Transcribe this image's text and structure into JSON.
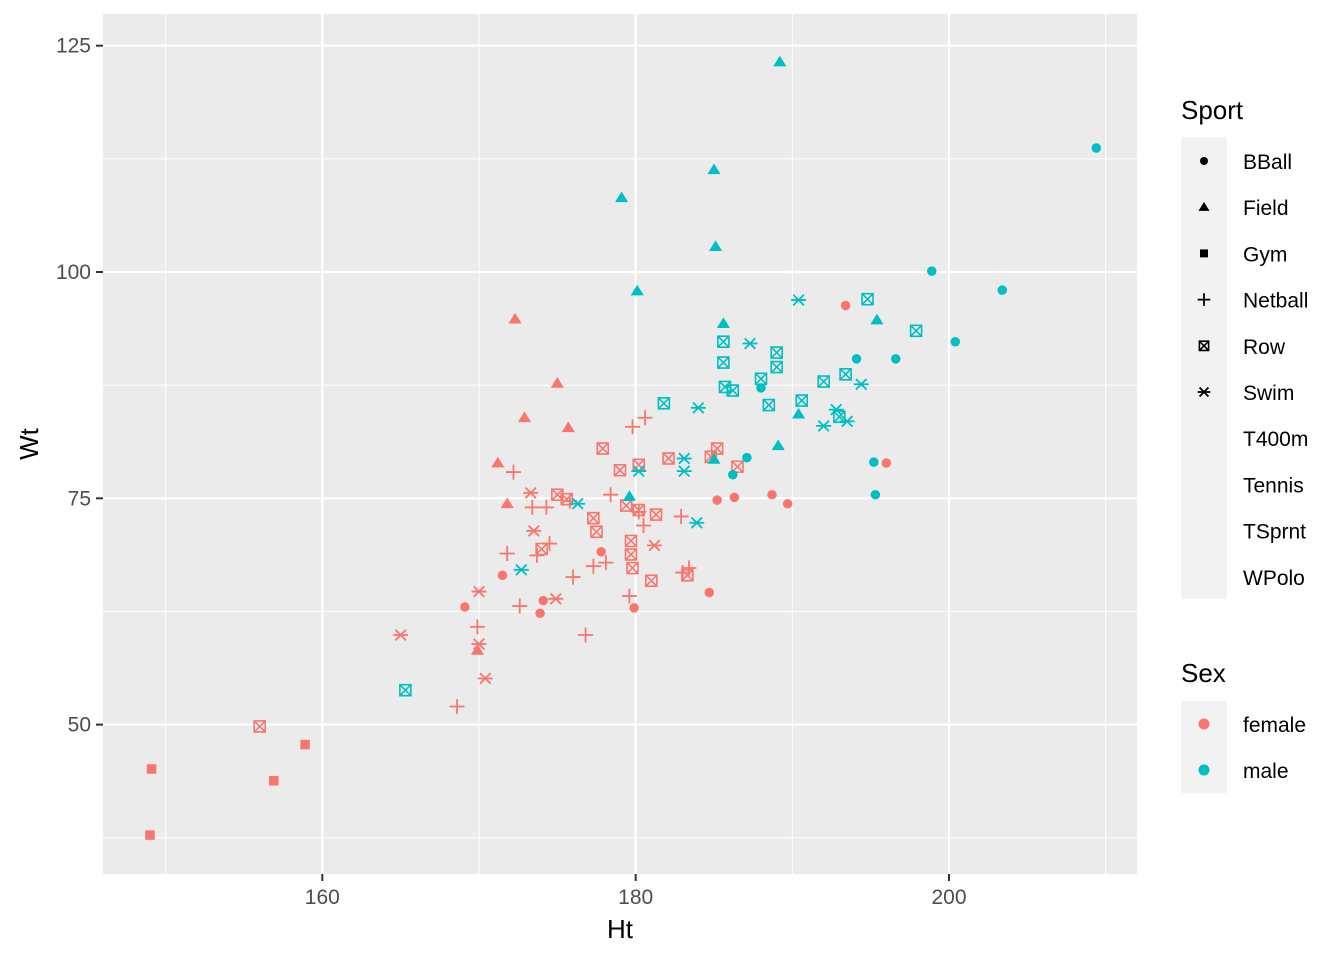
{
  "chart_data": {
    "type": "scatter",
    "xlabel": "Ht",
    "ylabel": "Wt",
    "xlim": [
      146,
      212
    ],
    "ylim": [
      33.5,
      128.5
    ],
    "x_ticks": [
      160,
      180,
      200
    ],
    "y_ticks": [
      50,
      75,
      100,
      125
    ],
    "x_tick_labels": [
      "160",
      "180",
      "200"
    ],
    "y_tick_labels": [
      "50",
      "75",
      "100",
      "125"
    ],
    "grid": true,
    "legend_position": "right",
    "colors": {
      "female": "#F8766D",
      "male": "#00BFC4",
      "panel": "#EBEBEB",
      "grid": "#FFFFFF",
      "legend_key": "#F2F2F2"
    },
    "legend_sport": {
      "title": "Sport",
      "items": [
        {
          "label": "BBall",
          "shape": "circle"
        },
        {
          "label": "Field",
          "shape": "triangle"
        },
        {
          "label": "Gym",
          "shape": "square"
        },
        {
          "label": "Netball",
          "shape": "plus"
        },
        {
          "label": "Row",
          "shape": "boxcross"
        },
        {
          "label": "Swim",
          "shape": "asterisk"
        },
        {
          "label": "T400m",
          "shape": "none"
        },
        {
          "label": "Tennis",
          "shape": "none"
        },
        {
          "label": "TSprnt",
          "shape": "none"
        },
        {
          "label": "WPolo",
          "shape": "none"
        }
      ]
    },
    "legend_sex": {
      "title": "Sex",
      "items": [
        {
          "label": "female",
          "color": "#F8766D"
        },
        {
          "label": "male",
          "color": "#00BFC4"
        }
      ]
    },
    "series": [
      {
        "sex": "female",
        "sport": "BBall",
        "points": [
          [
            169.1,
            63.0
          ],
          [
            171.5,
            66.5
          ],
          [
            173.9,
            62.3
          ],
          [
            174.1,
            63.7
          ],
          [
            177.8,
            69.1
          ],
          [
            179.9,
            62.9
          ],
          [
            184.7,
            64.6
          ],
          [
            185.2,
            74.8
          ],
          [
            186.3,
            75.1
          ],
          [
            188.7,
            75.4
          ],
          [
            189.7,
            74.4
          ],
          [
            193.4,
            96.3
          ],
          [
            196.0,
            78.9
          ]
        ]
      },
      {
        "sex": "female",
        "sport": "Field",
        "points": [
          [
            169.9,
            58.2
          ],
          [
            171.2,
            78.9
          ],
          [
            171.8,
            74.4
          ],
          [
            172.3,
            94.8
          ],
          [
            172.9,
            83.9
          ],
          [
            175.0,
            87.7
          ],
          [
            175.7,
            82.8
          ]
        ]
      },
      {
        "sex": "female",
        "sport": "Gym",
        "points": [
          [
            149.0,
            37.8
          ],
          [
            149.1,
            45.1
          ],
          [
            156.9,
            43.8
          ],
          [
            158.9,
            47.8
          ]
        ]
      },
      {
        "sex": "female",
        "sport": "Netball",
        "points": [
          [
            168.6,
            52.0
          ],
          [
            169.9,
            60.8
          ],
          [
            171.8,
            68.9
          ],
          [
            172.2,
            77.9
          ],
          [
            172.6,
            63.1
          ],
          [
            173.4,
            74.0
          ],
          [
            173.7,
            68.7
          ],
          [
            174.3,
            74.0
          ],
          [
            174.5,
            70.0
          ],
          [
            175.8,
            74.7
          ],
          [
            176.0,
            66.3
          ],
          [
            176.8,
            59.9
          ],
          [
            177.3,
            67.5
          ],
          [
            178.1,
            67.9
          ],
          [
            178.4,
            75.4
          ],
          [
            179.6,
            64.2
          ],
          [
            179.8,
            82.9
          ],
          [
            180.2,
            73.5
          ],
          [
            180.5,
            72.0
          ],
          [
            180.6,
            83.9
          ],
          [
            182.9,
            73.0
          ],
          [
            183.0,
            66.8
          ],
          [
            183.4,
            67.3
          ]
        ]
      },
      {
        "sex": "female",
        "sport": "Row",
        "points": [
          [
            156.0,
            49.8
          ],
          [
            174.0,
            69.4
          ],
          [
            175.0,
            75.4
          ],
          [
            175.6,
            74.9
          ],
          [
            177.3,
            72.8
          ],
          [
            177.5,
            71.3
          ],
          [
            177.9,
            80.5
          ],
          [
            179.0,
            78.1
          ],
          [
            179.4,
            74.2
          ],
          [
            179.7,
            70.3
          ],
          [
            179.7,
            68.8
          ],
          [
            179.8,
            67.3
          ],
          [
            180.2,
            73.7
          ],
          [
            180.2,
            78.7
          ],
          [
            181.0,
            65.9
          ],
          [
            181.3,
            73.2
          ],
          [
            182.1,
            79.4
          ],
          [
            183.3,
            66.5
          ],
          [
            184.8,
            79.6
          ],
          [
            185.2,
            80.5
          ],
          [
            186.5,
            78.5
          ]
        ]
      },
      {
        "sex": "female",
        "sport": "Swim",
        "points": [
          [
            165.0,
            59.9
          ],
          [
            170.0,
            64.7
          ],
          [
            170.0,
            58.9
          ],
          [
            170.4,
            55.1
          ],
          [
            173.3,
            75.6
          ],
          [
            173.5,
            71.4
          ],
          [
            174.9,
            63.9
          ],
          [
            181.2,
            69.8
          ]
        ]
      },
      {
        "sex": "male",
        "sport": "BBall",
        "points": [
          [
            186.2,
            77.6
          ],
          [
            187.1,
            79.5
          ],
          [
            188.0,
            87.2
          ],
          [
            194.1,
            90.4
          ],
          [
            195.2,
            79.0
          ],
          [
            195.3,
            75.4
          ],
          [
            196.6,
            90.4
          ],
          [
            198.9,
            100.1
          ],
          [
            200.4,
            92.3
          ],
          [
            203.4,
            98.0
          ],
          [
            209.4,
            113.7
          ]
        ]
      },
      {
        "sex": "male",
        "sport": "Field",
        "points": [
          [
            179.1,
            108.2
          ],
          [
            179.6,
            75.2
          ],
          [
            180.1,
            97.9
          ],
          [
            185.0,
            79.3
          ],
          [
            185.0,
            111.3
          ],
          [
            185.1,
            102.8
          ],
          [
            185.6,
            94.3
          ],
          [
            189.1,
            80.8
          ],
          [
            189.2,
            123.2
          ],
          [
            190.4,
            84.3
          ],
          [
            195.4,
            94.7
          ]
        ]
      },
      {
        "sex": "male",
        "sport": "Row",
        "points": [
          [
            165.3,
            53.8
          ],
          [
            181.8,
            85.5
          ],
          [
            185.6,
            92.3
          ],
          [
            185.6,
            90.0
          ],
          [
            185.7,
            87.3
          ],
          [
            186.2,
            86.9
          ],
          [
            188.0,
            88.2
          ],
          [
            188.5,
            85.3
          ],
          [
            189.0,
            91.1
          ],
          [
            189.0,
            89.5
          ],
          [
            190.6,
            85.8
          ],
          [
            192.0,
            87.9
          ],
          [
            193.0,
            84.0
          ],
          [
            193.4,
            88.7
          ],
          [
            194.8,
            97.0
          ],
          [
            197.9,
            93.5
          ]
        ]
      },
      {
        "sex": "male",
        "sport": "Swim",
        "points": [
          [
            172.7,
            67.1
          ],
          [
            176.3,
            74.4
          ],
          [
            180.2,
            78.0
          ],
          [
            183.1,
            79.4
          ],
          [
            183.1,
            78.0
          ],
          [
            183.9,
            72.3
          ],
          [
            184.0,
            85.0
          ],
          [
            187.3,
            92.1
          ],
          [
            190.4,
            96.9
          ],
          [
            192.0,
            83.0
          ],
          [
            192.8,
            84.8
          ],
          [
            193.5,
            83.5
          ],
          [
            194.4,
            87.6
          ]
        ]
      }
    ]
  }
}
